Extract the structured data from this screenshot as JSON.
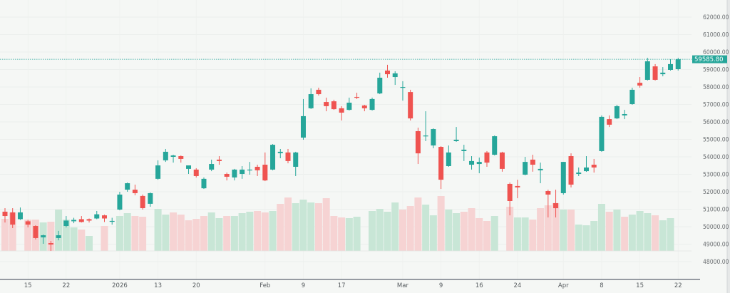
{
  "chart_data": {
    "type": "candlestick",
    "title": "",
    "xlabel": "",
    "ylabel": "",
    "ylim": [
      48000,
      62000
    ],
    "y_ticks": [
      "62000.00",
      "61000.00",
      "60000.00",
      "59000.00",
      "58000.00",
      "57000.00",
      "56000.00",
      "55000.00",
      "54000.00",
      "53000.00",
      "52000.00",
      "51000.00",
      "50000.00",
      "49000.00",
      "48000.00"
    ],
    "x_ticks": [
      {
        "label": "15",
        "date": "Dec 15"
      },
      {
        "label": "22",
        "date": "Dec 22"
      },
      {
        "label": "2026",
        "date": "Jan 5"
      },
      {
        "label": "13",
        "date": "Jan 13"
      },
      {
        "label": "20",
        "date": "Jan 20"
      },
      {
        "label": "Feb",
        "date": "Feb 2"
      },
      {
        "label": "9",
        "date": "Feb 9"
      },
      {
        "label": "17",
        "date": "Feb 17"
      },
      {
        "label": "Mar",
        "date": "Mar 2"
      },
      {
        "label": "9",
        "date": "Mar 9"
      },
      {
        "label": "16",
        "date": "Mar 16"
      },
      {
        "label": "24",
        "date": "Mar 24"
      },
      {
        "label": "Apr",
        "date": "Apr 1"
      },
      {
        "label": "8",
        "date": "Apr 8"
      },
      {
        "label": "15",
        "date": "Apr 15"
      },
      {
        "label": "22",
        "date": "Apr 22"
      }
    ],
    "grid": true,
    "last_price": "59585.80",
    "colors": {
      "up": "#26a69a",
      "down": "#ef5350",
      "up_volume": "#c8e6d6",
      "down_volume": "#f6d3d3",
      "last_price_line": "#26a69a",
      "background": "#f5f7f5"
    },
    "candle_fields": [
      "date",
      "open",
      "high",
      "low",
      "close"
    ],
    "candles": [
      [
        "Dec 10",
        50860,
        51060,
        50240,
        50610
      ],
      [
        "Dec 11",
        50820,
        51060,
        49920,
        50120
      ],
      [
        "Dec 12",
        50430,
        51100,
        50390,
        50820
      ],
      [
        "Dec 15",
        50310,
        50390,
        49960,
        50120
      ],
      [
        "Dec 16",
        50040,
        50080,
        49270,
        49350
      ],
      [
        "Dec 17",
        49390,
        49550,
        49020,
        49510
      ],
      [
        "Dec 18",
        49060,
        49180,
        48610,
        48980
      ],
      [
        "Dec 19",
        49350,
        49760,
        49220,
        49510
      ],
      [
        "Dec 22",
        50040,
        50610,
        49960,
        50350
      ],
      [
        "Dec 23",
        50310,
        50510,
        50200,
        50390
      ],
      [
        "Dec 24",
        50430,
        50610,
        50240,
        50270
      ],
      [
        "Dec 25",
        50430,
        50470,
        50240,
        50350
      ],
      [
        "Dec 26",
        50470,
        50900,
        50430,
        50710
      ],
      [
        "Dec 29",
        50650,
        50690,
        50270,
        50470
      ],
      [
        "Dec 30",
        50310,
        50510,
        50120,
        50330
      ],
      [
        "Jan 5",
        50980,
        52000,
        50940,
        51840
      ],
      [
        "Jan 6",
        52120,
        52530,
        52000,
        52490
      ],
      [
        "Jan 7",
        52120,
        52410,
        51800,
        51920
      ],
      [
        "Jan 8",
        51760,
        51840,
        50980,
        51060
      ],
      [
        "Jan 9",
        51310,
        51960,
        51140,
        51920
      ],
      [
        "Jan 13",
        52740,
        53800,
        52690,
        53510
      ],
      [
        "Jan 14",
        53800,
        54450,
        53710,
        54290
      ],
      [
        "Jan 15",
        54000,
        54120,
        53670,
        54080
      ],
      [
        "Jan 16",
        54040,
        54080,
        53670,
        53880
      ],
      [
        "Jan 19",
        53310,
        53510,
        53020,
        53510
      ],
      [
        "Jan 20",
        53270,
        53350,
        52820,
        52900
      ],
      [
        "Jan 21",
        52200,
        52820,
        52160,
        52740
      ],
      [
        "Jan 22",
        53270,
        53840,
        53180,
        53590
      ],
      [
        "Jan 23",
        53840,
        54040,
        53550,
        53760
      ],
      [
        "Jan 26",
        53020,
        53100,
        52650,
        52860
      ],
      [
        "Jan 27",
        52820,
        53310,
        52650,
        53270
      ],
      [
        "Jan 28",
        53020,
        53470,
        52740,
        53270
      ],
      [
        "Jan 29",
        53230,
        53710,
        52980,
        53270
      ],
      [
        "Jan 30",
        53430,
        53550,
        52900,
        53230
      ],
      [
        "Feb 2",
        53550,
        54250,
        52610,
        52650
      ],
      [
        "Feb 3",
        53270,
        54730,
        53230,
        54690
      ],
      [
        "Feb 4",
        54210,
        54450,
        53920,
        54290
      ],
      [
        "Feb 5",
        54250,
        54450,
        53630,
        53760
      ],
      [
        "Feb 6",
        53430,
        54290,
        52900,
        54250
      ],
      [
        "Feb 9",
        55100,
        57310,
        54980,
        56330
      ],
      [
        "Feb 10",
        56780,
        57920,
        56740,
        57590
      ],
      [
        "Feb 12",
        57840,
        57960,
        57510,
        57590
      ],
      [
        "Feb 13",
        57140,
        57390,
        56610,
        56900
      ],
      [
        "Feb 16",
        57180,
        57270,
        56690,
        56730
      ],
      [
        "Feb 17",
        56780,
        56900,
        56080,
        56530
      ],
      [
        "Feb 18",
        56690,
        57390,
        56650,
        57100
      ],
      [
        "Feb 19",
        57430,
        57670,
        57310,
        57390
      ],
      [
        "Feb 20",
        56940,
        56980,
        56610,
        56780
      ],
      [
        "Feb 24",
        56690,
        57390,
        56650,
        57310
      ],
      [
        "Feb 25",
        57630,
        58820,
        57590,
        58530
      ],
      [
        "Feb 26",
        58940,
        59270,
        58530,
        58730
      ],
      [
        "Feb 27",
        58570,
        58900,
        58120,
        58780
      ],
      [
        "Mar 2",
        57960,
        58330,
        57220,
        58000
      ],
      [
        "Mar 3",
        57710,
        57840,
        56080,
        56200
      ],
      [
        "Mar 4",
        55470,
        55670,
        53590,
        54200
      ],
      [
        "Mar 5",
        55180,
        56610,
        54900,
        55220
      ],
      [
        "Mar 6",
        54650,
        55630,
        54490,
        55590
      ],
      [
        "Mar 9",
        54570,
        54610,
        52160,
        52690
      ],
      [
        "Mar 10",
        53470,
        54650,
        53430,
        54250
      ],
      [
        "Mar 11",
        54900,
        55710,
        54860,
        54980
      ],
      [
        "Mar 12",
        54330,
        54690,
        53760,
        54410
      ],
      [
        "Mar 13",
        53550,
        54040,
        53270,
        53760
      ],
      [
        "Mar 16",
        53590,
        53960,
        53060,
        53710
      ],
      [
        "Mar 17",
        54250,
        54330,
        53430,
        53670
      ],
      [
        "Mar 18",
        54120,
        55220,
        54080,
        55180
      ],
      [
        "Mar 19",
        54250,
        54290,
        53150,
        53310
      ],
      [
        "Mar 23",
        52450,
        52530,
        50650,
        51470
      ],
      [
        "Mar 24",
        52330,
        52690,
        51630,
        52250
      ],
      [
        "Mar 25",
        52980,
        54000,
        52940,
        53710
      ],
      [
        "Mar 26",
        53840,
        54120,
        53150,
        53550
      ],
      [
        "Mar 27",
        53230,
        53670,
        52490,
        53310
      ],
      [
        "Mar 30",
        52040,
        52120,
        50530,
        51840
      ],
      [
        "Mar 31",
        51350,
        52120,
        50530,
        51060
      ],
      [
        "Apr 1",
        51920,
        53710,
        51840,
        53710
      ],
      [
        "Apr 2",
        54040,
        54200,
        52250,
        52410
      ],
      [
        "Apr 3",
        53020,
        53390,
        52900,
        53100
      ],
      [
        "Apr 6",
        53180,
        54040,
        53140,
        53390
      ],
      [
        "Apr 7",
        53550,
        53880,
        53100,
        53390
      ],
      [
        "Apr 8",
        54330,
        56370,
        54290,
        56290
      ],
      [
        "Apr 9",
        56160,
        56370,
        55710,
        55840
      ],
      [
        "Apr 10",
        56200,
        56980,
        56160,
        56900
      ],
      [
        "Apr 13",
        56370,
        56690,
        56160,
        56450
      ],
      [
        "Apr 14",
        57020,
        57960,
        56980,
        57840
      ],
      [
        "Apr 15",
        58240,
        58570,
        57960,
        58080
      ],
      [
        "Apr 16",
        58410,
        59670,
        58370,
        59470
      ],
      [
        "Apr 17",
        59180,
        59310,
        58370,
        58410
      ],
      [
        "Apr 20",
        58730,
        59140,
        58610,
        58820
      ],
      [
        "Apr 21",
        58980,
        59590,
        58940,
        59310
      ],
      [
        "Apr 22",
        59020,
        59670,
        58940,
        59585.8
      ]
    ],
    "volume_fields": [
      "relative_volume",
      "direction"
    ],
    "volume": [
      [
        45,
        "down"
      ],
      [
        54,
        "down"
      ],
      [
        0,
        "up"
      ],
      [
        44,
        "down"
      ],
      [
        44,
        "down"
      ],
      [
        40,
        "up"
      ],
      [
        41,
        "down"
      ],
      [
        58,
        "up"
      ],
      [
        44,
        "up"
      ],
      [
        33,
        "up"
      ],
      [
        30,
        "down"
      ],
      [
        21,
        "up"
      ],
      [
        0,
        "up"
      ],
      [
        35,
        "down"
      ],
      [
        0,
        "up"
      ],
      [
        49,
        "up"
      ],
      [
        53,
        "up"
      ],
      [
        49,
        "down"
      ],
      [
        48,
        "down"
      ],
      [
        0,
        "up"
      ],
      [
        59,
        "up"
      ],
      [
        51,
        "up"
      ],
      [
        54,
        "down"
      ],
      [
        51,
        "down"
      ],
      [
        43,
        "down"
      ],
      [
        45,
        "down"
      ],
      [
        49,
        "down"
      ],
      [
        54,
        "up"
      ],
      [
        46,
        "up"
      ],
      [
        49,
        "down"
      ],
      [
        49,
        "up"
      ],
      [
        53,
        "up"
      ],
      [
        55,
        "up"
      ],
      [
        56,
        "down"
      ],
      [
        54,
        "down"
      ],
      [
        56,
        "up"
      ],
      [
        66,
        "down"
      ],
      [
        75,
        "down"
      ],
      [
        67,
        "up"
      ],
      [
        72,
        "up"
      ],
      [
        68,
        "up"
      ],
      [
        67,
        "down"
      ],
      [
        74,
        "down"
      ],
      [
        49,
        "down"
      ],
      [
        47,
        "down"
      ],
      [
        46,
        "up"
      ],
      [
        48,
        "up"
      ],
      [
        0,
        "up"
      ],
      [
        56,
        "up"
      ],
      [
        59,
        "up"
      ],
      [
        55,
        "up"
      ],
      [
        68,
        "up"
      ],
      [
        58,
        "down"
      ],
      [
        63,
        "down"
      ],
      [
        75,
        "down"
      ],
      [
        65,
        "up"
      ],
      [
        50,
        "up"
      ],
      [
        77,
        "down"
      ],
      [
        58,
        "up"
      ],
      [
        53,
        "up"
      ],
      [
        55,
        "down"
      ],
      [
        60,
        "down"
      ],
      [
        46,
        "down"
      ],
      [
        42,
        "down"
      ],
      [
        49,
        "up"
      ],
      [
        0,
        "up"
      ],
      [
        62,
        "down"
      ],
      [
        47,
        "up"
      ],
      [
        47,
        "up"
      ],
      [
        44,
        "down"
      ],
      [
        60,
        "down"
      ],
      [
        64,
        "down"
      ],
      [
        67,
        "down"
      ],
      [
        58,
        "up"
      ],
      [
        58,
        "down"
      ],
      [
        37,
        "up"
      ],
      [
        36,
        "up"
      ],
      [
        42,
        "up"
      ],
      [
        66,
        "up"
      ],
      [
        55,
        "down"
      ],
      [
        58,
        "up"
      ],
      [
        48,
        "down"
      ],
      [
        51,
        "up"
      ],
      [
        56,
        "up"
      ],
      [
        53,
        "up"
      ],
      [
        50,
        "down"
      ],
      [
        43,
        "up"
      ],
      [
        46,
        "up"
      ],
      [
        0,
        "up"
      ]
    ]
  }
}
